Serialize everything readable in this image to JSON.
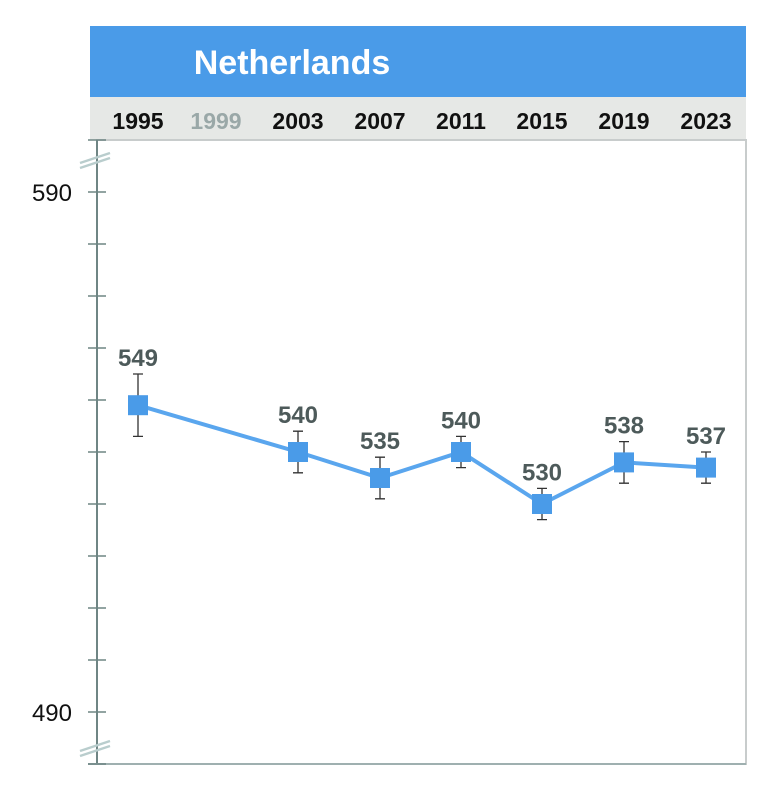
{
  "chart_data": {
    "type": "line",
    "title": "Netherlands",
    "categories": [
      "1995",
      "1999",
      "2003",
      "2007",
      "2011",
      "2015",
      "2019",
      "2023"
    ],
    "highlighted_categories": [
      "1995",
      "2003",
      "2007",
      "2011",
      "2015",
      "2019",
      "2023"
    ],
    "series": [
      {
        "name": "Netherlands",
        "values": [
          549,
          null,
          540,
          535,
          540,
          530,
          538,
          537
        ],
        "error_margin": [
          6,
          null,
          4,
          4,
          3,
          3,
          4,
          3
        ]
      }
    ],
    "y_ticks": [
      590,
      490
    ],
    "ylim": [
      490,
      590
    ],
    "y_axis_broken": true,
    "colors": {
      "header": "#4a9be8",
      "line": "#5aa6ee",
      "marker": "#4a9be8",
      "label": "#4d5a5a",
      "year_active": "#111111",
      "year_inactive": "#9aa8a8"
    }
  }
}
